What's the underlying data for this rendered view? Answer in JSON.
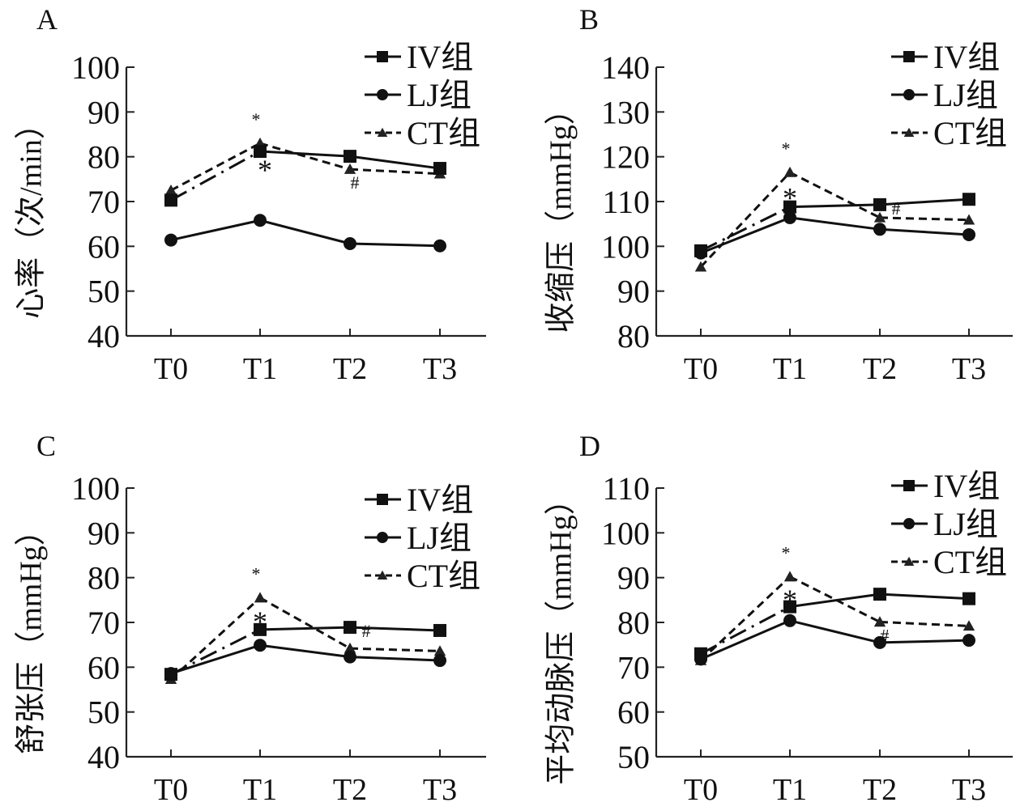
{
  "chart_data": [
    {
      "type": "line",
      "panel": "A",
      "title": "",
      "xlabel": "",
      "ylabel": "心率（次/min）",
      "categories": [
        "T0",
        "T1",
        "T2",
        "T3"
      ],
      "ylim": [
        40,
        100
      ],
      "yticks": [
        40,
        50,
        60,
        70,
        80,
        90,
        100
      ],
      "grid": false,
      "legend_position": "top-right",
      "series": [
        {
          "name": "IV组",
          "marker": "square",
          "line": "solid",
          "values": [
            70.3,
            81.2,
            80.1,
            77.4
          ]
        },
        {
          "name": "LJ组",
          "marker": "circle",
          "line": "solid",
          "values": [
            61.4,
            65.8,
            60.6,
            60.1
          ]
        },
        {
          "name": "CT组",
          "marker": "triangle",
          "line": "dashed",
          "values": [
            72.5,
            83.0,
            77.2,
            76.2
          ]
        }
      ],
      "annotations": [
        {
          "text": "*",
          "x": "T1",
          "position": "above",
          "size": "small"
        },
        {
          "text": "*",
          "x": "T1",
          "position": "below-right",
          "size": "large"
        },
        {
          "text": "#",
          "x": "T2",
          "position": "below",
          "size": "small"
        }
      ]
    },
    {
      "type": "line",
      "panel": "B",
      "title": "",
      "xlabel": "",
      "ylabel": "收缩压（mmHg）",
      "categories": [
        "T0",
        "T1",
        "T2",
        "T3"
      ],
      "ylim": [
        80,
        140
      ],
      "yticks": [
        80,
        90,
        100,
        110,
        120,
        130,
        140
      ],
      "grid": false,
      "legend_position": "top-right",
      "series": [
        {
          "name": "IV组",
          "marker": "square",
          "line": "solid",
          "values": [
            99.0,
            108.8,
            109.3,
            110.5
          ]
        },
        {
          "name": "LJ组",
          "marker": "circle",
          "line": "solid",
          "values": [
            98.5,
            106.4,
            103.8,
            102.6
          ]
        },
        {
          "name": "CT组",
          "marker": "triangle",
          "line": "dashed",
          "values": [
            95.4,
            116.5,
            106.4,
            105.9
          ]
        }
      ],
      "annotations": [
        {
          "text": "*",
          "x": "T1",
          "position": "above",
          "size": "small"
        },
        {
          "text": "*",
          "x": "T1",
          "position": "below",
          "size": "large"
        },
        {
          "text": "#",
          "x": "T2",
          "position": "right",
          "size": "small"
        }
      ]
    },
    {
      "type": "line",
      "panel": "C",
      "title": "",
      "xlabel": "",
      "ylabel": "舒张压（mmHg）",
      "categories": [
        "T0",
        "T1",
        "T2",
        "T3"
      ],
      "ylim": [
        40,
        100
      ],
      "yticks": [
        40,
        50,
        60,
        70,
        80,
        90,
        100
      ],
      "grid": false,
      "legend_position": "top-right",
      "series": [
        {
          "name": "IV组",
          "marker": "square",
          "line": "solid",
          "values": [
            58.4,
            68.4,
            68.9,
            68.2
          ]
        },
        {
          "name": "LJ组",
          "marker": "circle",
          "line": "solid",
          "values": [
            58.6,
            64.9,
            62.3,
            61.5
          ]
        },
        {
          "name": "CT组",
          "marker": "triangle",
          "line": "dashed",
          "values": [
            57.3,
            75.5,
            64.2,
            63.6
          ]
        }
      ],
      "annotations": [
        {
          "text": "*",
          "x": "T1",
          "position": "above",
          "size": "small"
        },
        {
          "text": "*",
          "x": "T1",
          "position": "below",
          "size": "large"
        },
        {
          "text": "#",
          "x": "T2",
          "position": "right",
          "size": "small"
        }
      ]
    },
    {
      "type": "line",
      "panel": "D",
      "title": "",
      "xlabel": "",
      "ylabel": "平均动脉压（mmHg）",
      "categories": [
        "T0",
        "T1",
        "T2",
        "T3"
      ],
      "ylim": [
        50,
        110
      ],
      "yticks": [
        50,
        60,
        70,
        80,
        90,
        100,
        110
      ],
      "grid": false,
      "legend_position": "top-right",
      "series": [
        {
          "name": "IV组",
          "marker": "square",
          "line": "solid",
          "values": [
            73.0,
            83.5,
            86.3,
            85.3
          ]
        },
        {
          "name": "LJ组",
          "marker": "circle",
          "line": "solid",
          "values": [
            71.8,
            80.4,
            75.5,
            76.0
          ]
        },
        {
          "name": "CT组",
          "marker": "triangle",
          "line": "dashed",
          "values": [
            71.5,
            90.2,
            80.1,
            79.2
          ]
        }
      ],
      "annotations": [
        {
          "text": "*",
          "x": "T1",
          "position": "above",
          "size": "small"
        },
        {
          "text": "*",
          "x": "T1",
          "position": "below",
          "size": "large"
        },
        {
          "text": "#",
          "x": "T2",
          "position": "below",
          "size": "small"
        }
      ]
    }
  ]
}
